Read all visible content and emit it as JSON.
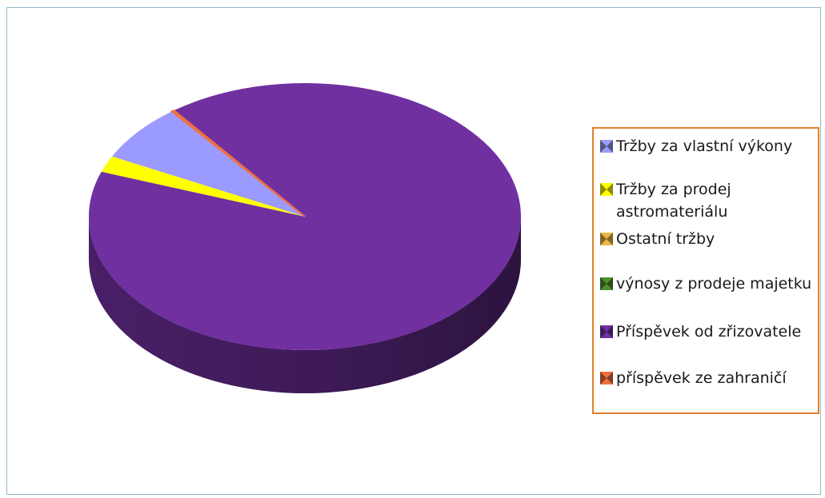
{
  "chart_data": {
    "type": "pie",
    "title": "",
    "slices": [
      {
        "label": "Tržby za vlastní výkony",
        "value": 7.0,
        "color": "#9b9bff"
      },
      {
        "label": "Tržby za prodej astromateriálu",
        "value": 2.0,
        "color": "#ffff00"
      },
      {
        "label": "Ostatní tržby",
        "value": 0.0,
        "color": "#e8b84a"
      },
      {
        "label": "výnosy z prodeje majetku",
        "value": 0.0,
        "color": "#4f8f2f"
      },
      {
        "label": "Příspěvek od zřizovatele",
        "value": 90.8,
        "color": "#7030a0"
      },
      {
        "label": "příspěvek ze zahraničí",
        "value": 0.2,
        "color": "#f07040"
      }
    ],
    "legend": {
      "placement": "right"
    }
  }
}
